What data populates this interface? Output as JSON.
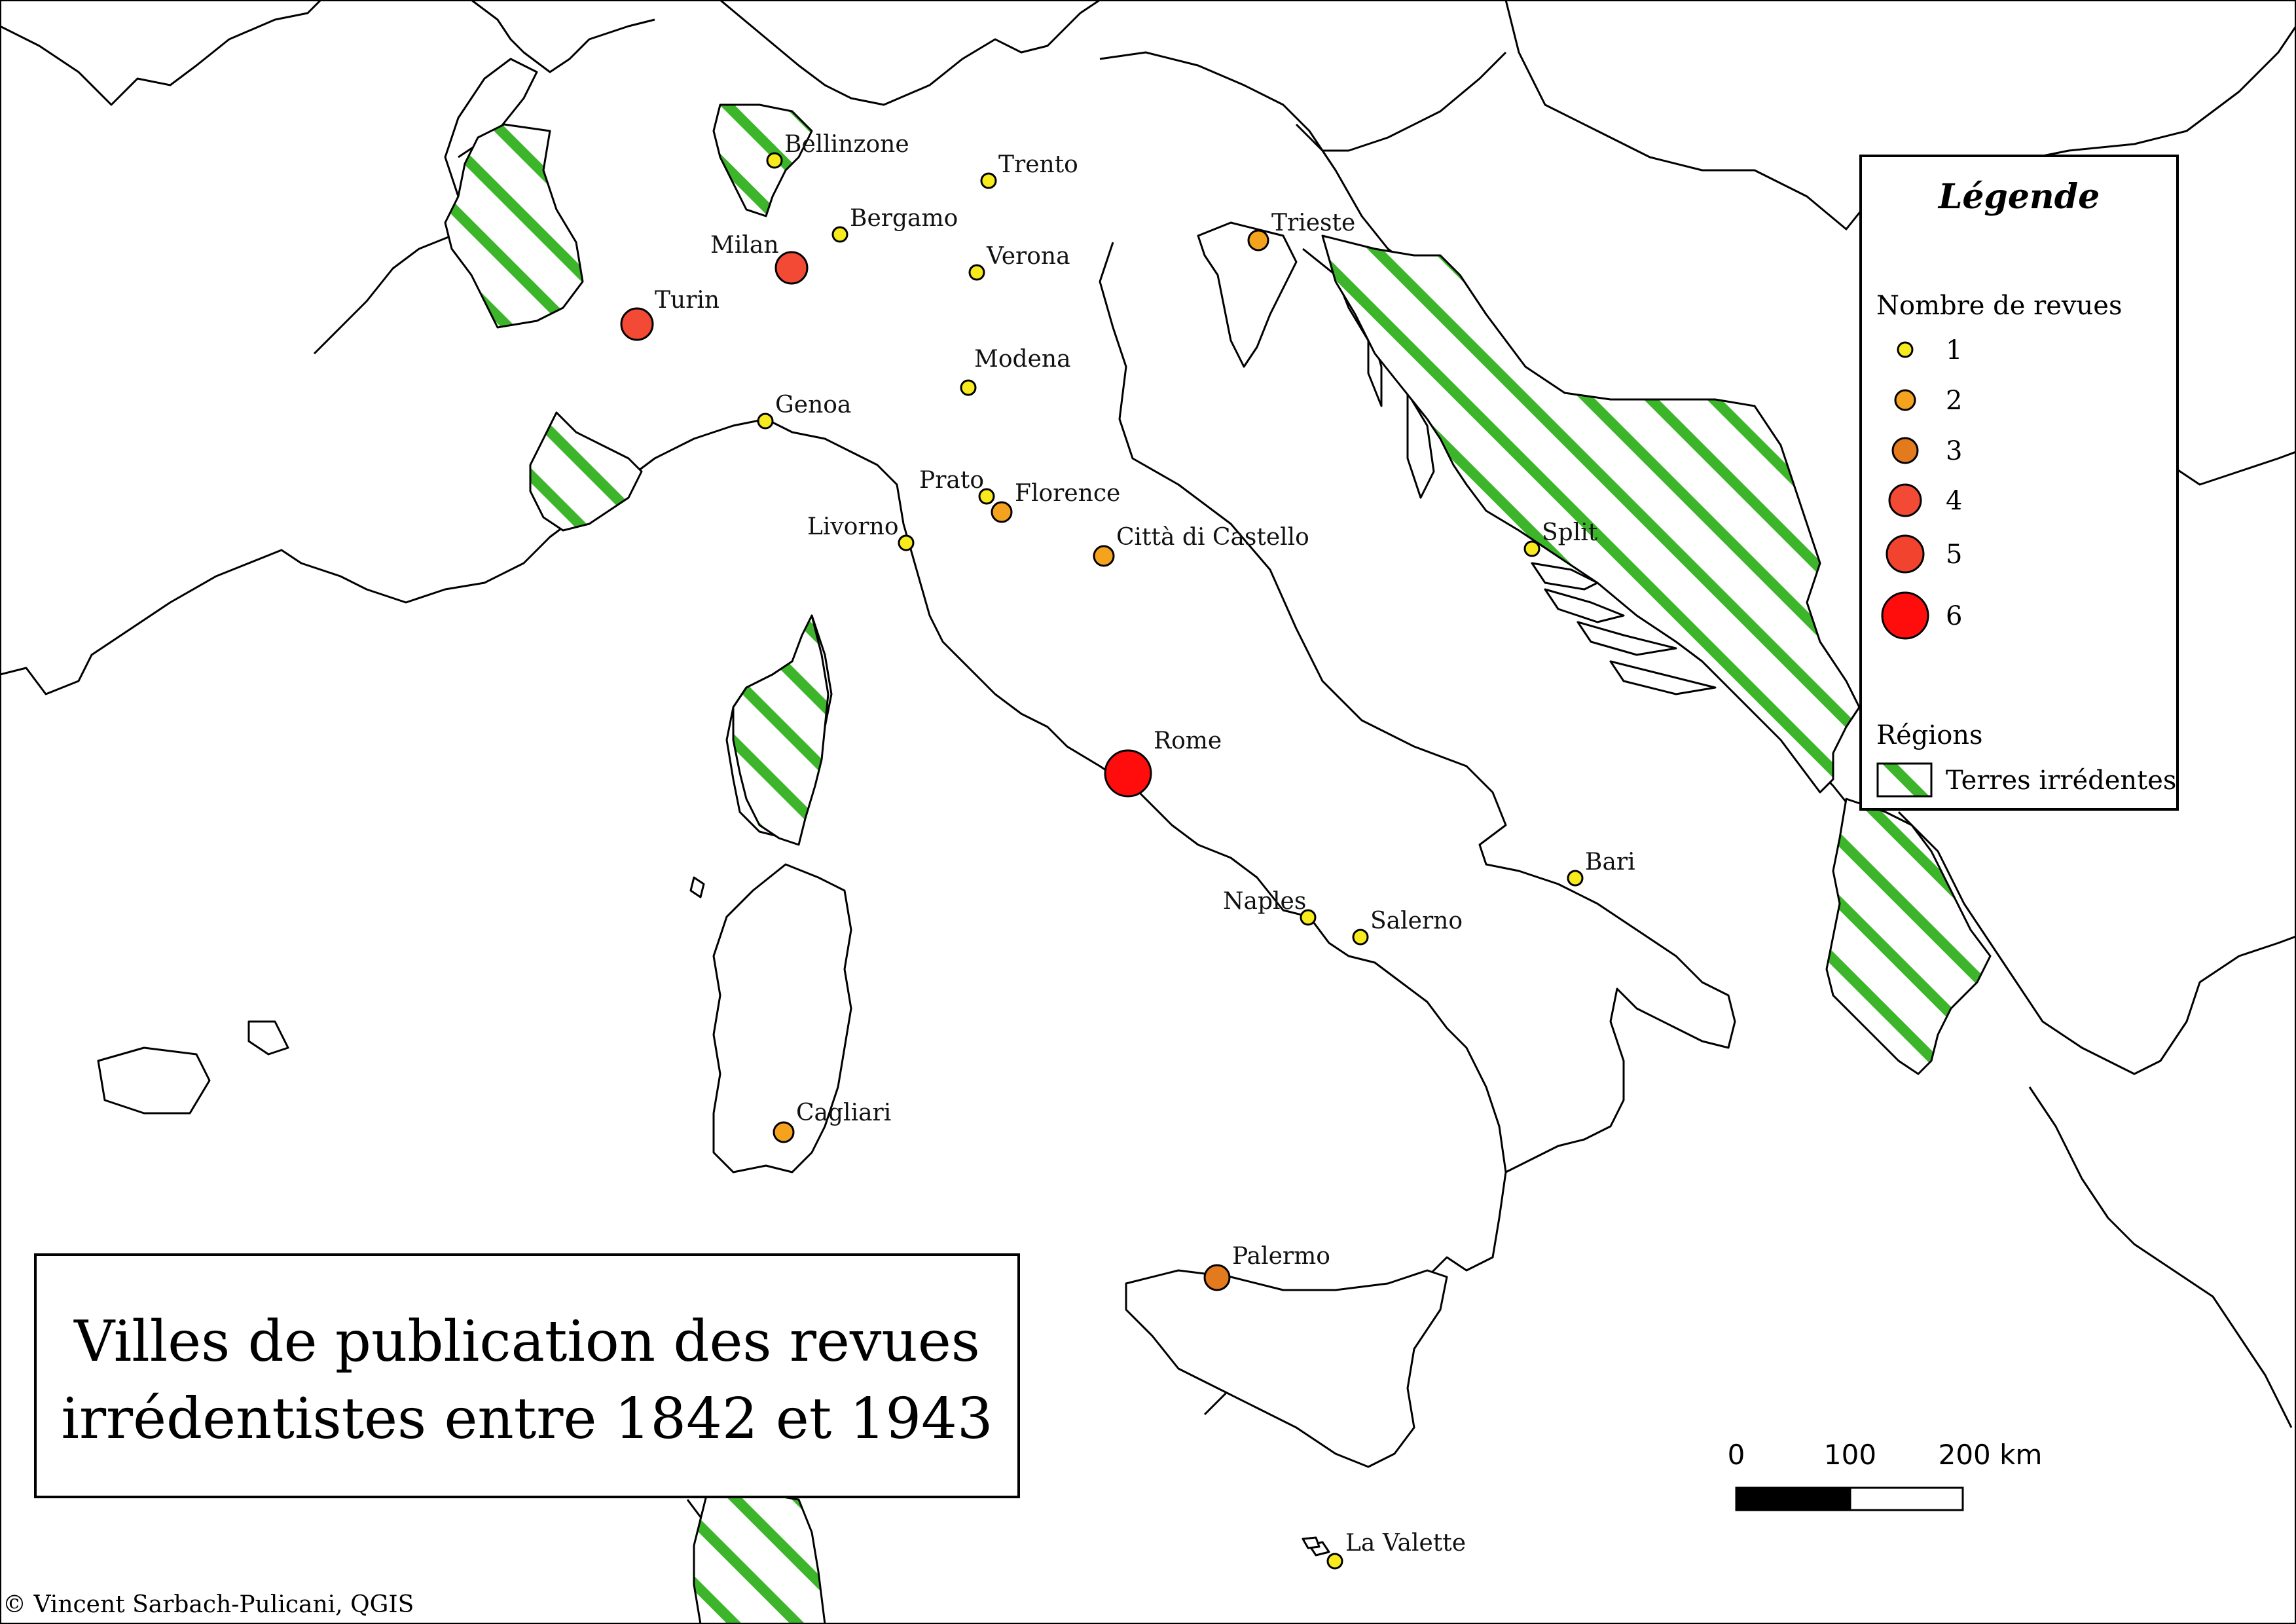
{
  "title": {
    "line1": "Villes de publication des revues",
    "line2": "irrédentistes entre 1842 et 1943"
  },
  "credit": "© Vincent Sarbach-Pulicani, QGIS",
  "colors": {
    "count_1": "#f7ea1d",
    "count_2": "#f5a21f",
    "count_3": "#e37a1d",
    "count_4": "#f24a35",
    "count_5": "#f2432e",
    "count_6": "#ff0d0d",
    "hatch_green": "#3db52b"
  },
  "legend": {
    "title": "Légende",
    "size_heading": "Nombre de revues",
    "size_items": [
      "1",
      "2",
      "3",
      "4",
      "5",
      "6"
    ],
    "region_heading": "Régions",
    "region_item": "Terres irrédentes"
  },
  "scale_bar": {
    "labels": [
      "0",
      "100",
      "200 km"
    ]
  },
  "cities": [
    {
      "name": "Bellinzone",
      "count": 1
    },
    {
      "name": "Trento",
      "count": 1
    },
    {
      "name": "Bergamo",
      "count": 1
    },
    {
      "name": "Milan",
      "count": 4
    },
    {
      "name": "Verona",
      "count": 1
    },
    {
      "name": "Turin",
      "count": 4
    },
    {
      "name": "Trieste",
      "count": 2
    },
    {
      "name": "Modena",
      "count": 1
    },
    {
      "name": "Genoa",
      "count": 1
    },
    {
      "name": "Prato",
      "count": 1
    },
    {
      "name": "Florence",
      "count": 2
    },
    {
      "name": "Livorno",
      "count": 1
    },
    {
      "name": "Città di Castello",
      "count": 2
    },
    {
      "name": "Split",
      "count": 1
    },
    {
      "name": "Rome",
      "count": 6
    },
    {
      "name": "Bari",
      "count": 1
    },
    {
      "name": "Naples",
      "count": 1
    },
    {
      "name": "Salerno",
      "count": 1
    },
    {
      "name": "Cagliari",
      "count": 2
    },
    {
      "name": "Palermo",
      "count": 3
    },
    {
      "name": "La Valette",
      "count": 1
    }
  ]
}
